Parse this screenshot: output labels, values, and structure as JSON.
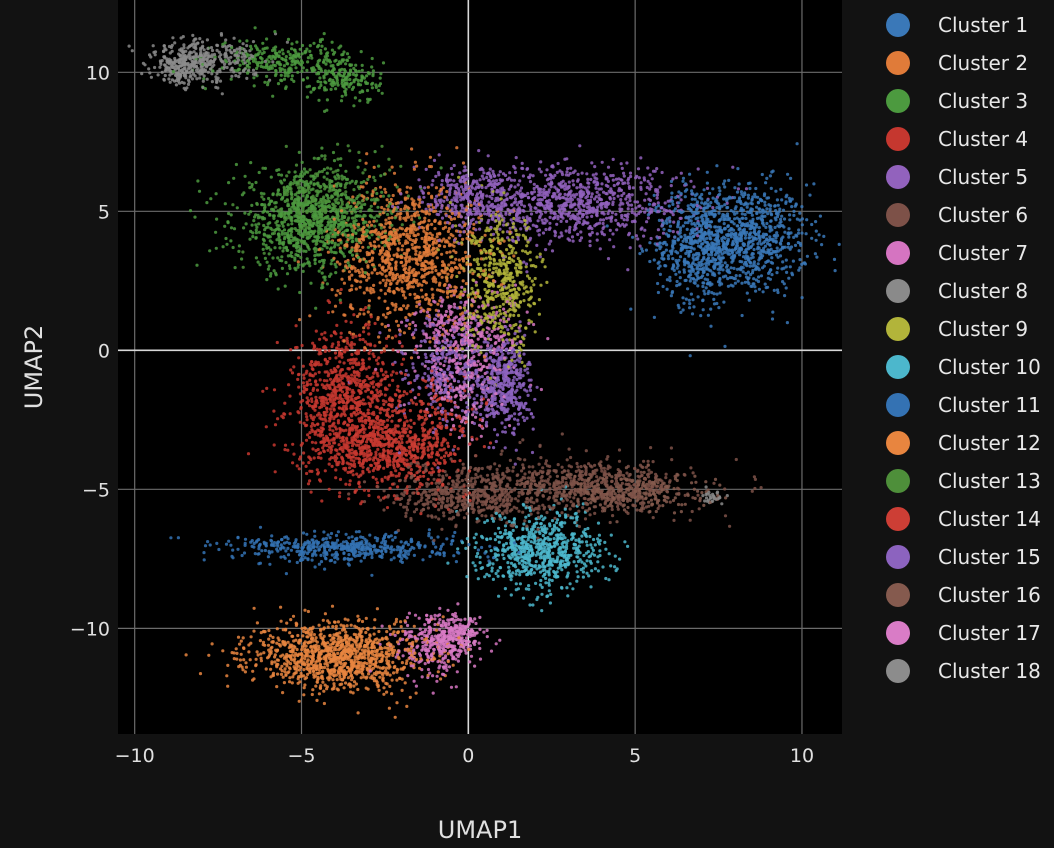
{
  "chart_data": {
    "type": "scatter",
    "xlabel": "UMAP1",
    "ylabel": "UMAP2",
    "xlim": [
      -10.5,
      11.2
    ],
    "ylim": [
      -13.8,
      12.6
    ],
    "xticks": [
      -10,
      -5,
      0,
      5,
      10
    ],
    "yticks": [
      -10,
      -5,
      0,
      5,
      10
    ],
    "xtick_labels": [
      "−10",
      "−5",
      "0",
      "5",
      "10"
    ],
    "ytick_labels": [
      "−10",
      "−5",
      "0",
      "5",
      "10"
    ],
    "grid": true,
    "legend_position": "right",
    "colors": {
      "background": "#121212",
      "plot_area": "#000000",
      "grid": "#6b6b6b",
      "zero_line": "#d8d8d8"
    },
    "series": [
      {
        "name": "Cluster 1",
        "color": "#3a78b8",
        "clouds": [
          {
            "cx": 8.2,
            "cy": 4.0,
            "sx": 1.0,
            "sy": 1.0,
            "n": 900
          },
          {
            "cx": 6.8,
            "cy": 3.8,
            "sx": 0.6,
            "sy": 1.1,
            "n": 400
          }
        ]
      },
      {
        "name": "Cluster 2",
        "color": "#e07b39",
        "clouds": [
          {
            "cx": -1.8,
            "cy": 3.5,
            "sx": 1.1,
            "sy": 1.3,
            "n": 1000
          }
        ]
      },
      {
        "name": "Cluster 3",
        "color": "#4c9a3f",
        "clouds": [
          {
            "cx": -4.8,
            "cy": 4.6,
            "sx": 1.1,
            "sy": 0.9,
            "n": 900
          },
          {
            "cx": -5.5,
            "cy": 10.4,
            "sx": 1.0,
            "sy": 0.4,
            "n": 300
          },
          {
            "cx": -3.6,
            "cy": 9.7,
            "sx": 0.5,
            "sy": 0.4,
            "n": 150
          }
        ]
      },
      {
        "name": "Cluster 4",
        "color": "#c5372f",
        "clouds": [
          {
            "cx": -3.7,
            "cy": -1.8,
            "sx": 0.8,
            "sy": 1.3,
            "n": 900
          },
          {
            "cx": -2.6,
            "cy": -3.6,
            "sx": 0.9,
            "sy": 0.6,
            "n": 400
          }
        ]
      },
      {
        "name": "Cluster 5",
        "color": "#9262bd",
        "clouds": [
          {
            "cx": 3.0,
            "cy": 5.3,
            "sx": 1.8,
            "sy": 0.7,
            "n": 900
          },
          {
            "cx": 0.3,
            "cy": 5.5,
            "sx": 0.8,
            "sy": 0.6,
            "n": 300
          }
        ]
      },
      {
        "name": "Cluster 6",
        "color": "#7d5148",
        "clouds": [
          {
            "cx": 3.5,
            "cy": -4.9,
            "sx": 1.6,
            "sy": 0.5,
            "n": 600
          },
          {
            "cx": 0.0,
            "cy": -5.2,
            "sx": 1.1,
            "sy": 0.5,
            "n": 500
          }
        ]
      },
      {
        "name": "Cluster 7",
        "color": "#d574c1",
        "clouds": [
          {
            "cx": 0.0,
            "cy": 0.6,
            "sx": 0.9,
            "sy": 0.8,
            "n": 350
          },
          {
            "cx": -1.0,
            "cy": -10.6,
            "sx": 0.6,
            "sy": 0.6,
            "n": 250
          }
        ]
      },
      {
        "name": "Cluster 8",
        "color": "#8a8a8a",
        "clouds": [
          {
            "cx": -8.0,
            "cy": 10.4,
            "sx": 0.8,
            "sy": 0.4,
            "n": 350
          },
          {
            "cx": 7.3,
            "cy": -5.3,
            "sx": 0.15,
            "sy": 0.1,
            "n": 30
          }
        ]
      },
      {
        "name": "Cluster 9",
        "color": "#b2b43a",
        "clouds": [
          {
            "cx": 1.0,
            "cy": 2.4,
            "sx": 0.6,
            "sy": 1.2,
            "n": 500
          }
        ]
      },
      {
        "name": "Cluster 10",
        "color": "#4cb7cc",
        "clouds": [
          {
            "cx": 2.2,
            "cy": -7.2,
            "sx": 0.9,
            "sy": 0.7,
            "n": 700
          }
        ]
      },
      {
        "name": "Cluster 11",
        "color": "#3472b3",
        "clouds": [
          {
            "cx": -3.6,
            "cy": -7.1,
            "sx": 1.7,
            "sy": 0.25,
            "n": 500
          }
        ]
      },
      {
        "name": "Cluster 12",
        "color": "#e8853f",
        "clouds": [
          {
            "cx": -3.9,
            "cy": -11.0,
            "sx": 1.3,
            "sy": 0.6,
            "n": 1100
          }
        ]
      },
      {
        "name": "Cluster 13",
        "color": "#4e8f3a",
        "clouds": [
          {
            "cx": -4.2,
            "cy": 5.2,
            "sx": 1.0,
            "sy": 0.8,
            "n": 300
          }
        ]
      },
      {
        "name": "Cluster 14",
        "color": "#cd3e35",
        "clouds": [
          {
            "cx": -1.5,
            "cy": -3.0,
            "sx": 0.9,
            "sy": 1.1,
            "n": 400
          }
        ]
      },
      {
        "name": "Cluster 15",
        "color": "#8c63bf",
        "clouds": [
          {
            "cx": 1.1,
            "cy": -1.3,
            "sx": 0.4,
            "sy": 0.9,
            "n": 400
          },
          {
            "cx": -0.6,
            "cy": -0.8,
            "sx": 0.8,
            "sy": 1.0,
            "n": 300
          }
        ]
      },
      {
        "name": "Cluster 16",
        "color": "#855a4e",
        "clouds": [
          {
            "cx": 4.8,
            "cy": -5.1,
            "sx": 1.2,
            "sy": 0.35,
            "n": 300
          }
        ]
      },
      {
        "name": "Cluster 17",
        "color": "#d97cc6",
        "clouds": [
          {
            "cx": -0.4,
            "cy": -10.3,
            "sx": 0.4,
            "sy": 0.4,
            "n": 200
          },
          {
            "cx": -0.2,
            "cy": -1.5,
            "sx": 0.6,
            "sy": 0.8,
            "n": 150
          }
        ]
      },
      {
        "name": "Cluster 18",
        "color": "#8c8c8c",
        "clouds": [
          {
            "cx": -8.6,
            "cy": 10.2,
            "sx": 0.4,
            "sy": 0.3,
            "n": 120
          }
        ]
      }
    ]
  }
}
